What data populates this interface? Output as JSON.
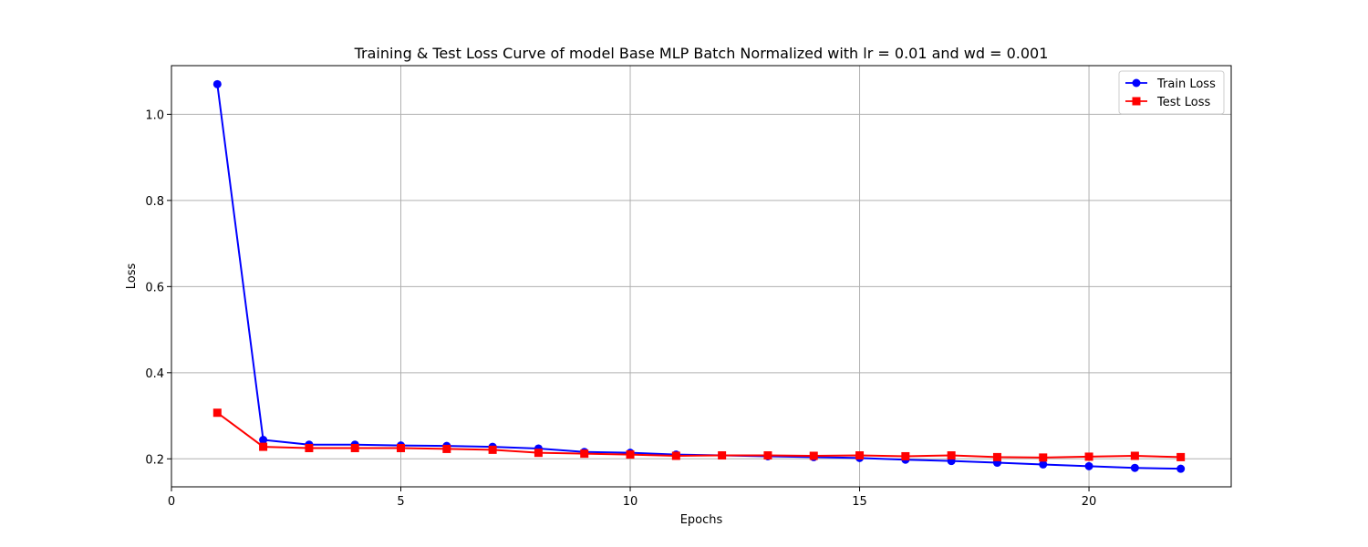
{
  "chart_data": {
    "type": "line",
    "title": "Training & Test Loss Curve of model Base MLP Batch Normalized with lr = 0.01 and wd = 0.001",
    "xlabel": "Epochs",
    "ylabel": "Loss",
    "xlim": [
      0,
      23.1
    ],
    "ylim": [
      0.135,
      1.113
    ],
    "xticks": [
      0,
      5,
      10,
      15,
      20
    ],
    "yticks": [
      0.2,
      0.4,
      0.6,
      0.8,
      1.0
    ],
    "xtick_labels": [
      "0",
      "5",
      "10",
      "15",
      "20"
    ],
    "ytick_labels": [
      "0.2",
      "0.4",
      "0.6",
      "0.8",
      "1.0"
    ],
    "grid": true,
    "legend_position": "top-right",
    "x": [
      1,
      2,
      3,
      4,
      5,
      6,
      7,
      8,
      9,
      10,
      11,
      12,
      13,
      14,
      15,
      16,
      17,
      18,
      19,
      20,
      21,
      22
    ],
    "series": [
      {
        "name": "Train Loss",
        "color": "#0000ff",
        "marker": "circle",
        "values": [
          1.07,
          0.244,
          0.233,
          0.233,
          0.231,
          0.23,
          0.228,
          0.224,
          0.216,
          0.214,
          0.21,
          0.208,
          0.206,
          0.204,
          0.202,
          0.198,
          0.195,
          0.191,
          0.187,
          0.183,
          0.179,
          0.177
        ]
      },
      {
        "name": "Test Loss",
        "color": "#ff0000",
        "marker": "square",
        "values": [
          0.307,
          0.228,
          0.225,
          0.225,
          0.225,
          0.223,
          0.221,
          0.214,
          0.212,
          0.21,
          0.207,
          0.208,
          0.208,
          0.207,
          0.208,
          0.206,
          0.208,
          0.204,
          0.203,
          0.205,
          0.207,
          0.204
        ]
      }
    ]
  }
}
